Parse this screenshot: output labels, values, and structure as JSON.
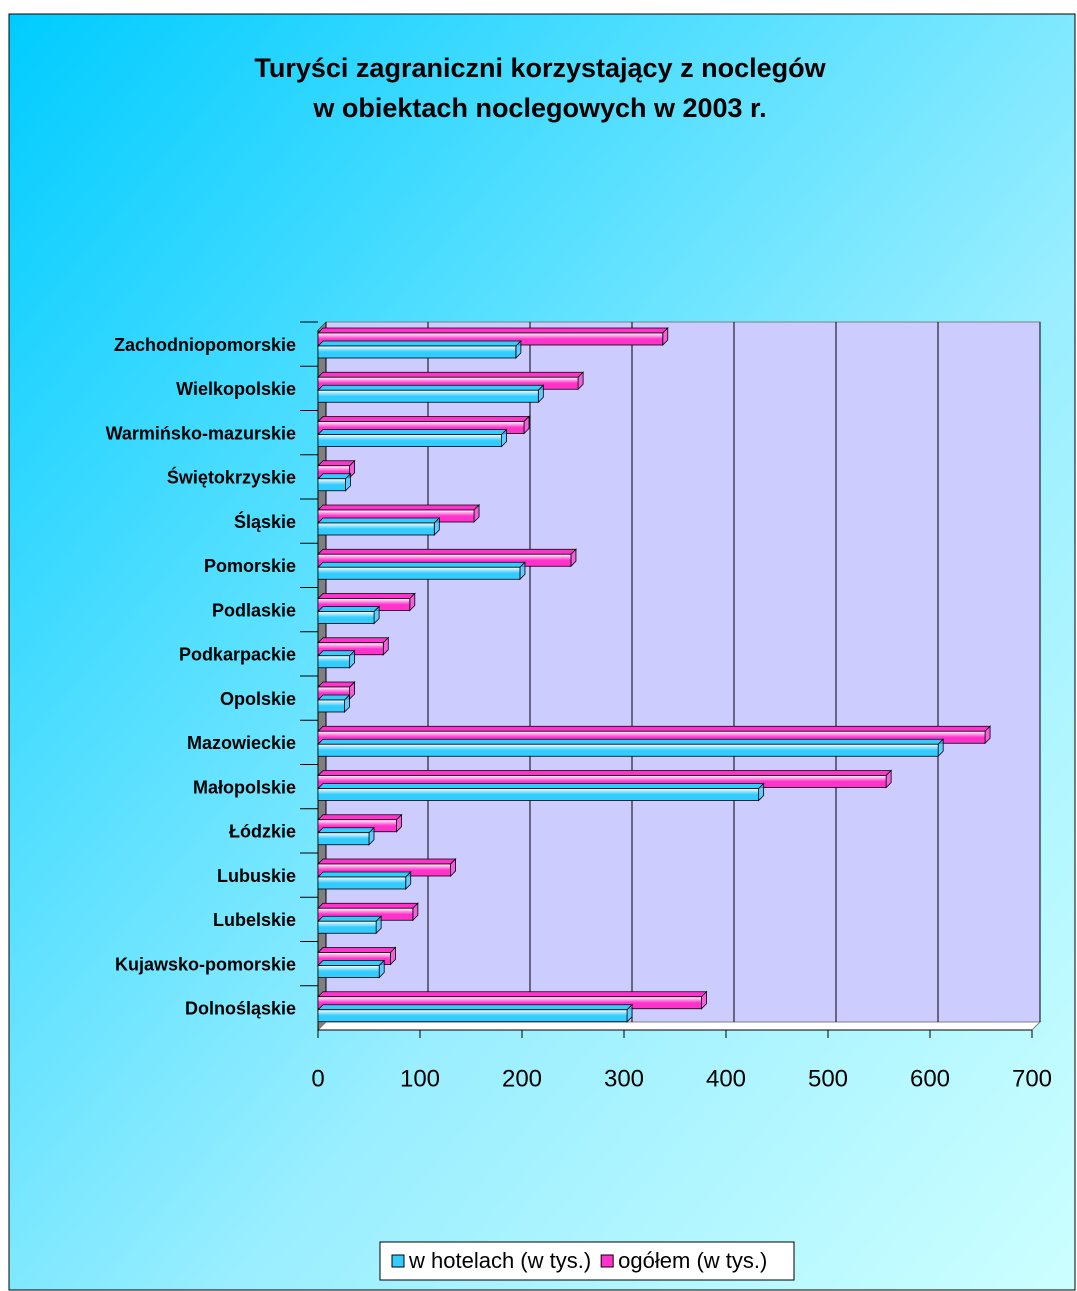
{
  "chart_data": {
    "type": "bar",
    "orientation": "horizontal",
    "title": "Turyści zagraniczni korzystający z noclegów",
    "subtitle": "w obiektach noclegowych w 2003 r.",
    "categories": [
      "Dolnośląskie",
      "Kujawsko-pomorskie",
      "Lubelskie",
      "Lubuskie",
      "Łódzkie",
      "Małopolskie",
      "Mazowieckie",
      "Opolskie",
      "Podkarpackie",
      "Podlaskie",
      "Pomorskie",
      "Śląskie",
      "Świętokrzyskie",
      "Warmińsko-mazurskie",
      "Wielkopolskie",
      "Zachodniopomorskie"
    ],
    "series": [
      {
        "name": "w hotelach (w tys.)",
        "color": "#33ccff",
        "values": [
          303,
          60,
          57,
          86,
          50,
          432,
          608,
          26,
          31,
          55,
          198,
          114,
          27,
          180,
          216,
          194
        ]
      },
      {
        "name": "ogółem (w tys.)",
        "color": "#ff33cc",
        "values": [
          376,
          71,
          93,
          130,
          77,
          557,
          654,
          31,
          64,
          90,
          248,
          153,
          31,
          202,
          255,
          338
        ]
      }
    ],
    "xlim": [
      0,
      700
    ],
    "xticks": [
      0,
      100,
      200,
      300,
      400,
      500,
      600,
      700
    ],
    "grid": true,
    "legend": "bottom"
  }
}
